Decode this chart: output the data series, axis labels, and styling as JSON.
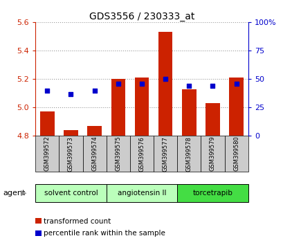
{
  "title": "GDS3556 / 230333_at",
  "samples": [
    "GSM399572",
    "GSM399573",
    "GSM399574",
    "GSM399575",
    "GSM399576",
    "GSM399577",
    "GSM399578",
    "GSM399579",
    "GSM399580"
  ],
  "transformed_counts": [
    4.97,
    4.84,
    4.87,
    5.2,
    5.21,
    5.53,
    5.13,
    5.03,
    5.21
  ],
  "percentile_ranks": [
    40,
    37,
    40,
    46,
    46,
    50,
    44,
    44,
    46
  ],
  "bar_bottom": 4.8,
  "ylim_left": [
    4.8,
    5.6
  ],
  "ylim_right": [
    0,
    100
  ],
  "yticks_left": [
    4.8,
    5.0,
    5.2,
    5.4,
    5.6
  ],
  "yticks_right": [
    0,
    25,
    50,
    75,
    100
  ],
  "ytick_labels_right": [
    "0",
    "25",
    "50",
    "75",
    "100%"
  ],
  "bar_color": "#cc2200",
  "dot_color": "#0000cc",
  "group_configs": [
    {
      "label": "solvent control",
      "start": 0,
      "end": 2,
      "color": "#bbffbb"
    },
    {
      "label": "angiotensin II",
      "start": 3,
      "end": 5,
      "color": "#bbffbb"
    },
    {
      "label": "torcetrapib",
      "start": 6,
      "end": 8,
      "color": "#44dd44"
    }
  ],
  "legend_items": [
    {
      "label": "transformed count",
      "color": "#cc2200"
    },
    {
      "label": "percentile rank within the sample",
      "color": "#0000cc"
    }
  ],
  "tick_color_left": "#cc2200",
  "tick_color_right": "#0000cc",
  "sample_bg_color": "#cccccc"
}
